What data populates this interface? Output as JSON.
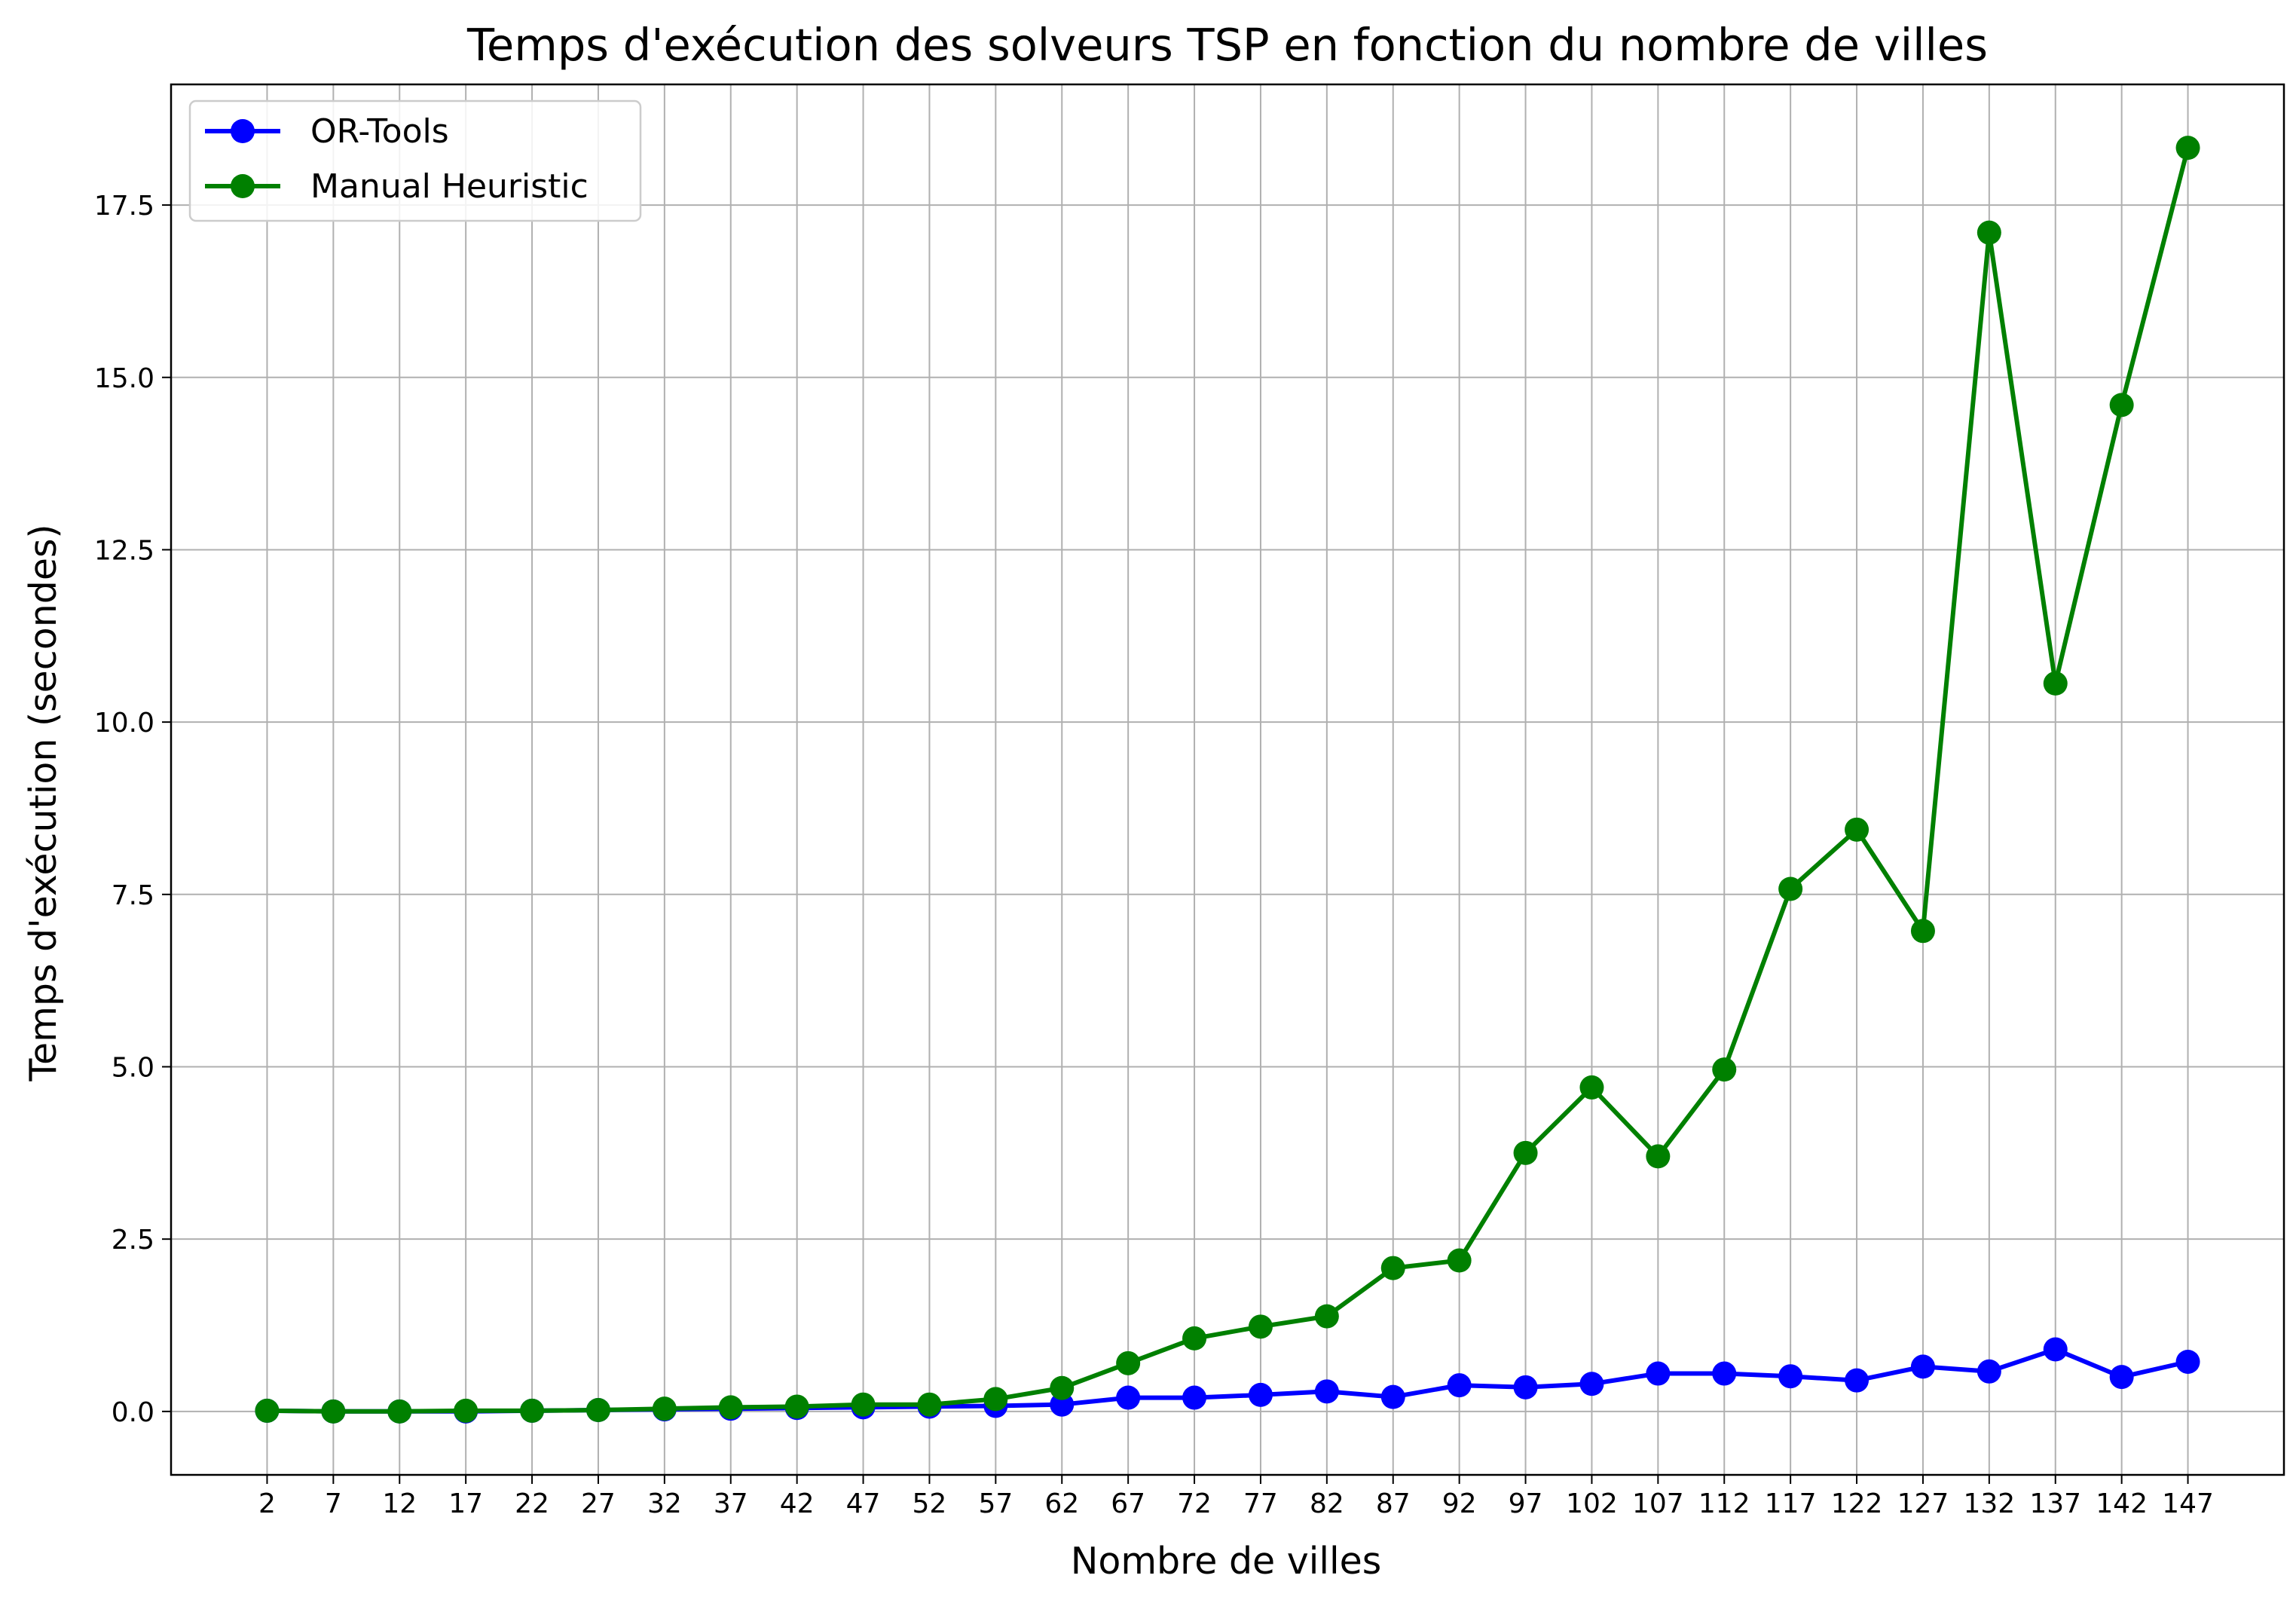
{
  "chart_data": {
    "type": "line",
    "title": "Temps d'exécution des solveurs TSP en fonction du nombre de villes",
    "xlabel": "Nombre de villes",
    "ylabel": "Temps d'exécution (secondes)",
    "x": [
      2,
      7,
      12,
      17,
      22,
      27,
      32,
      37,
      42,
      47,
      52,
      57,
      62,
      67,
      72,
      77,
      82,
      87,
      92,
      97,
      102,
      107,
      112,
      117,
      122,
      127,
      132,
      137,
      142,
      147
    ],
    "x_tick_labels": [
      "2",
      "7",
      "12",
      "17",
      "22",
      "27",
      "32",
      "37",
      "42",
      "47",
      "52",
      "57",
      "62",
      "67",
      "72",
      "77",
      "82",
      "87",
      "92",
      "97",
      "102",
      "107",
      "112",
      "117",
      "122",
      "127",
      "132",
      "137",
      "142",
      "147"
    ],
    "xlim": [
      -5.25,
      154.25
    ],
    "ylim": [
      -0.92,
      19.25
    ],
    "y_ticks": [
      0.0,
      2.5,
      5.0,
      7.5,
      10.0,
      12.5,
      15.0,
      17.5
    ],
    "y_tick_labels": [
      "0.0",
      "2.5",
      "5.0",
      "7.5",
      "10.0",
      "12.5",
      "15.0",
      "17.5"
    ],
    "grid": true,
    "legend_position": "top-left",
    "series": [
      {
        "name": "OR-Tools",
        "color": "#0000ff",
        "values": [
          0.01,
          0.0,
          0.0,
          0.0,
          0.01,
          0.02,
          0.03,
          0.04,
          0.05,
          0.06,
          0.07,
          0.08,
          0.1,
          0.2,
          0.2,
          0.24,
          0.29,
          0.21,
          0.38,
          0.35,
          0.4,
          0.55,
          0.55,
          0.51,
          0.45,
          0.65,
          0.58,
          0.9,
          0.5,
          0.72
        ]
      },
      {
        "name": "Manual Heuristic",
        "color": "#008000",
        "values": [
          0.01,
          0.0,
          0.0,
          0.01,
          0.01,
          0.02,
          0.04,
          0.06,
          0.07,
          0.1,
          0.1,
          0.18,
          0.34,
          0.7,
          1.06,
          1.23,
          1.38,
          2.08,
          2.19,
          3.75,
          4.7,
          3.7,
          4.96,
          7.58,
          8.44,
          6.97,
          17.1,
          10.56,
          14.6,
          18.33
        ]
      }
    ]
  }
}
